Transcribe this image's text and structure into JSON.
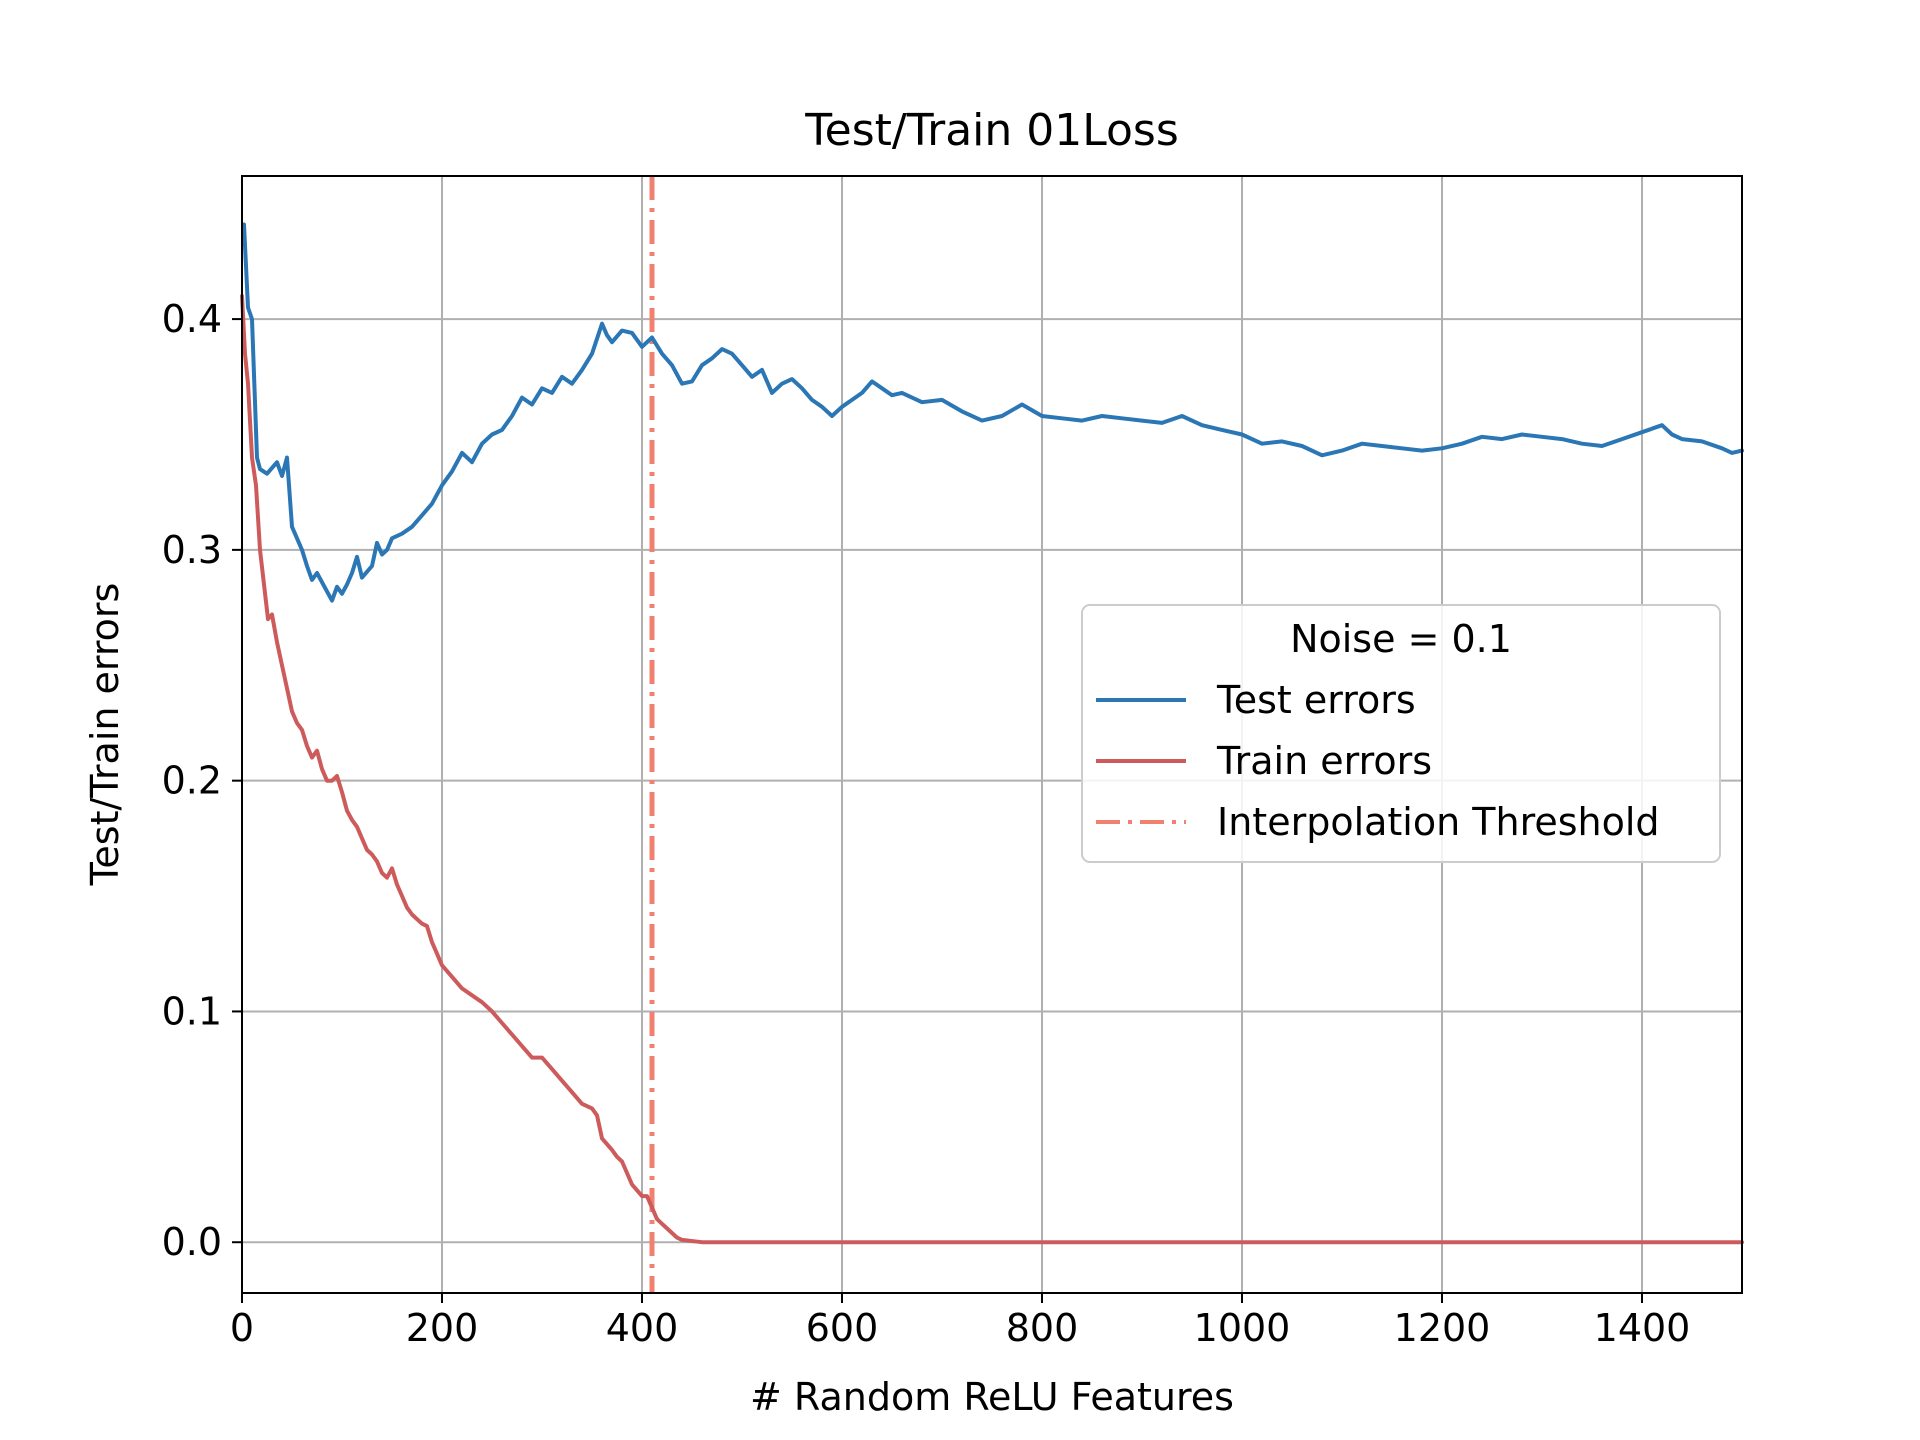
{
  "chart_data": {
    "type": "line",
    "title": "Test/Train 01Loss",
    "xlabel": "# Random ReLU Features",
    "ylabel": "Test/Train errors",
    "xlim": [
      0,
      1500
    ],
    "ylim": [
      -0.022,
      0.462
    ],
    "xticks": [
      0,
      200,
      400,
      600,
      800,
      1000,
      1200,
      1400
    ],
    "xtick_labels": [
      "0",
      "200",
      "400",
      "600",
      "800",
      "1000",
      "1200",
      "1400"
    ],
    "yticks": [
      0.0,
      0.1,
      0.2,
      0.3,
      0.4
    ],
    "ytick_labels": [
      "0.0",
      "0.1",
      "0.2",
      "0.3",
      "0.4"
    ],
    "grid": true,
    "legend": {
      "title": "Noise = 0.1",
      "placement": "center-right"
    },
    "series": [
      {
        "name": "Test errors",
        "color": "#2b76b5",
        "style": "solid",
        "x": [
          2,
          6,
          10,
          15,
          18,
          25,
          35,
          40,
          45,
          50,
          55,
          60,
          65,
          70,
          75,
          85,
          90,
          95,
          100,
          105,
          110,
          115,
          120,
          130,
          135,
          140,
          145,
          150,
          160,
          170,
          180,
          190,
          200,
          210,
          220,
          230,
          240,
          250,
          260,
          270,
          280,
          290,
          300,
          310,
          320,
          330,
          340,
          350,
          360,
          365,
          370,
          380,
          390,
          400,
          410,
          420,
          430,
          440,
          450,
          460,
          470,
          480,
          490,
          500,
          510,
          520,
          530,
          540,
          550,
          560,
          570,
          580,
          590,
          600,
          610,
          620,
          630,
          640,
          650,
          660,
          680,
          700,
          720,
          740,
          760,
          780,
          800,
          820,
          840,
          860,
          880,
          900,
          920,
          940,
          960,
          980,
          1000,
          1020,
          1040,
          1060,
          1080,
          1100,
          1120,
          1140,
          1160,
          1180,
          1200,
          1220,
          1240,
          1260,
          1280,
          1300,
          1320,
          1340,
          1360,
          1380,
          1400,
          1420,
          1430,
          1440,
          1460,
          1480,
          1490,
          1500
        ],
        "y": [
          0.441,
          0.405,
          0.4,
          0.34,
          0.335,
          0.333,
          0.338,
          0.332,
          0.34,
          0.31,
          0.305,
          0.3,
          0.293,
          0.287,
          0.29,
          0.282,
          0.278,
          0.284,
          0.281,
          0.285,
          0.29,
          0.297,
          0.288,
          0.293,
          0.303,
          0.298,
          0.3,
          0.305,
          0.307,
          0.31,
          0.315,
          0.32,
          0.328,
          0.334,
          0.342,
          0.338,
          0.346,
          0.35,
          0.352,
          0.358,
          0.366,
          0.363,
          0.37,
          0.368,
          0.375,
          0.372,
          0.378,
          0.385,
          0.398,
          0.393,
          0.39,
          0.395,
          0.394,
          0.388,
          0.392,
          0.385,
          0.38,
          0.372,
          0.373,
          0.38,
          0.383,
          0.387,
          0.385,
          0.38,
          0.375,
          0.378,
          0.368,
          0.372,
          0.374,
          0.37,
          0.365,
          0.362,
          0.358,
          0.362,
          0.365,
          0.368,
          0.373,
          0.37,
          0.367,
          0.368,
          0.364,
          0.365,
          0.36,
          0.356,
          0.358,
          0.363,
          0.358,
          0.357,
          0.356,
          0.358,
          0.357,
          0.356,
          0.355,
          0.358,
          0.354,
          0.352,
          0.35,
          0.346,
          0.347,
          0.345,
          0.341,
          0.343,
          0.346,
          0.345,
          0.344,
          0.343,
          0.344,
          0.346,
          0.349,
          0.348,
          0.35,
          0.349,
          0.348,
          0.346,
          0.345,
          0.348,
          0.351,
          0.354,
          0.35,
          0.348,
          0.347,
          0.344,
          0.342,
          0.343
        ]
      },
      {
        "name": "Train errors",
        "color": "#cd5b5b",
        "style": "solid",
        "x": [
          0,
          3,
          6,
          10,
          14,
          18,
          22,
          26,
          30,
          35,
          40,
          45,
          50,
          55,
          60,
          65,
          70,
          75,
          80,
          85,
          90,
          95,
          100,
          105,
          110,
          115,
          120,
          125,
          130,
          135,
          140,
          145,
          150,
          155,
          160,
          165,
          170,
          175,
          180,
          185,
          190,
          195,
          200,
          210,
          220,
          230,
          240,
          250,
          260,
          270,
          280,
          290,
          300,
          310,
          320,
          330,
          340,
          350,
          355,
          360,
          370,
          375,
          380,
          390,
          400,
          405,
          410,
          415,
          420,
          425,
          430,
          435,
          440,
          460,
          500,
          600,
          800,
          1000,
          1200,
          1400,
          1500
        ],
        "y": [
          0.41,
          0.385,
          0.372,
          0.34,
          0.328,
          0.3,
          0.285,
          0.27,
          0.272,
          0.26,
          0.25,
          0.24,
          0.23,
          0.225,
          0.222,
          0.215,
          0.21,
          0.213,
          0.205,
          0.2,
          0.2,
          0.202,
          0.195,
          0.187,
          0.183,
          0.18,
          0.175,
          0.17,
          0.168,
          0.165,
          0.16,
          0.158,
          0.162,
          0.155,
          0.15,
          0.145,
          0.142,
          0.14,
          0.138,
          0.137,
          0.13,
          0.125,
          0.12,
          0.115,
          0.11,
          0.107,
          0.104,
          0.1,
          0.095,
          0.09,
          0.085,
          0.08,
          0.08,
          0.075,
          0.07,
          0.065,
          0.06,
          0.058,
          0.055,
          0.045,
          0.04,
          0.037,
          0.035,
          0.025,
          0.02,
          0.02,
          0.015,
          0.01,
          0.008,
          0.006,
          0.004,
          0.002,
          0.001,
          0.0,
          0.0,
          0.0,
          0.0,
          0.0,
          0.0,
          0.0,
          0.0
        ]
      }
    ],
    "vlines": [
      {
        "name": "Interpolation Threshold",
        "x": 410,
        "color": "#f08070",
        "style": "dashdot"
      }
    ]
  }
}
